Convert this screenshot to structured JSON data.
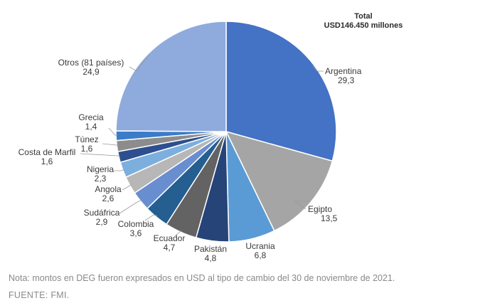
{
  "total": {
    "line1": "Total",
    "line2": "USD146.450 millones"
  },
  "footer": {
    "note": "Nota: montos en DEG fueron expresados en USD al tipo de cambio del 30 de noviembre de 2021.",
    "source": "FUENTE: FMI."
  },
  "chart_data": {
    "type": "pie",
    "labels": [
      "Argentina",
      "Egipto",
      "Ucrania",
      "Pakistán",
      "Ecuador",
      "Colombia",
      "Sudáfrica",
      "Angola",
      "Nigeria",
      "Costa de Marfil",
      "Túnez",
      "Grecia",
      "Otros (81 países)"
    ],
    "values": [
      29.3,
      13.5,
      6.8,
      4.8,
      4.7,
      3.6,
      2.9,
      2.6,
      2.3,
      1.6,
      1.6,
      1.4,
      24.9
    ],
    "value_labels": [
      "29,3",
      "13,5",
      "6,8",
      "4,8",
      "4,7",
      "3,6",
      "2,9",
      "2,6",
      "2,3",
      "1,6",
      "1,6",
      "1,4",
      "24,9"
    ],
    "colors": [
      "#4472c4",
      "#a5a5a5",
      "#5b9bd5",
      "#264478",
      "#636363",
      "#255e91",
      "#698ed0",
      "#b7b7b7",
      "#7cafdd",
      "#2e4f8f",
      "#8c8c8c",
      "#3a7cc8",
      "#8faadc"
    ],
    "start_angle_deg": 0,
    "direction": "clockwise"
  }
}
